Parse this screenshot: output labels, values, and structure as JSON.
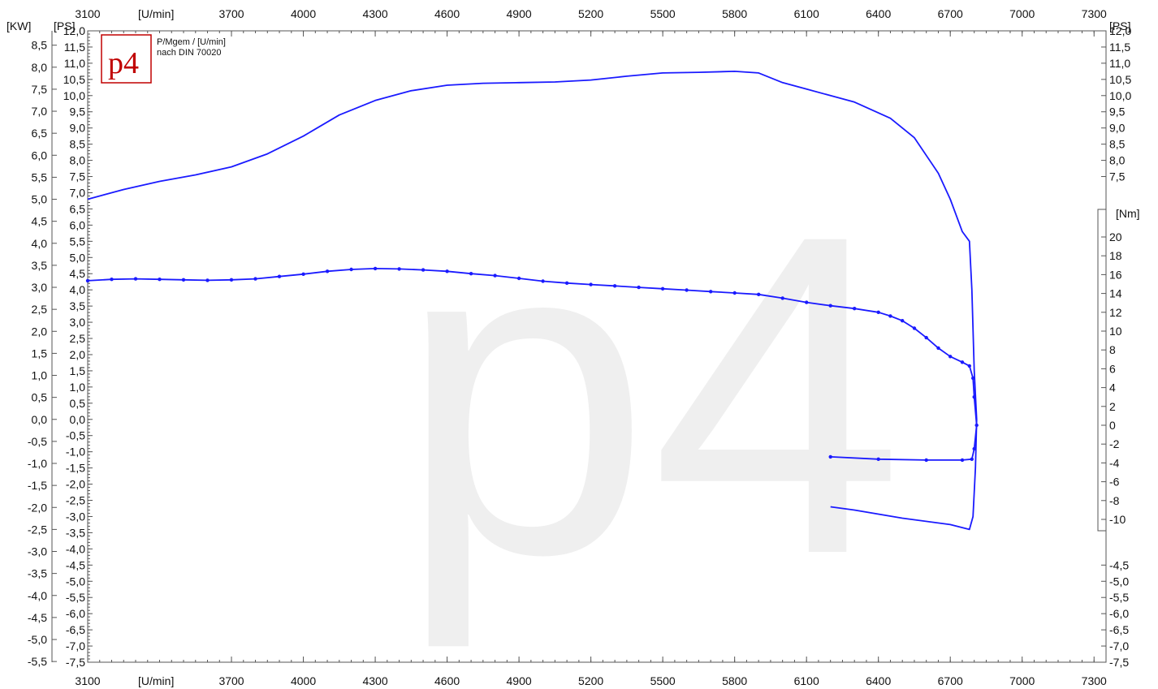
{
  "chart_data": {
    "type": "line",
    "header": {
      "left_kw": "[KW]",
      "left_ps": "[PS]",
      "right_ps": "[PS]",
      "right_nm": "[Nm]",
      "x_unit_top": "[U/min]",
      "x_unit_bottom": "[U/min]"
    },
    "legend_note": {
      "line1": "P/Mgem / [U/min]",
      "line2": "nach DIN 70020"
    },
    "logo_text": "p4",
    "watermark_text": "p4",
    "x_axis": {
      "range": [
        3100,
        7350
      ],
      "tick_labels": [
        3100,
        3700,
        4000,
        4300,
        4600,
        4900,
        5200,
        5500,
        5800,
        6100,
        6400,
        6700,
        7000,
        7300
      ]
    },
    "kw_axis": {
      "tick_labels": [
        "8,5",
        "8,0",
        "7,5",
        "7,0",
        "6,5",
        "6,0",
        "5,5",
        "5,0",
        "4,5",
        "4,0",
        "3,5",
        "3,0",
        "2,5",
        "2,0",
        "1,5",
        "1,0",
        "0,5",
        "0,0",
        "-0,5",
        "-1,0",
        "-1,5",
        "-2,0",
        "-2,5",
        "-3,0",
        "-3,5",
        "-4,0",
        "-4,5",
        "-5,0",
        "-5,5"
      ]
    },
    "ps_axis": {
      "range": [
        -7.5,
        12.0
      ],
      "tick_labels": [
        "12,0",
        "11,5",
        "11,0",
        "10,5",
        "10,0",
        "9,5",
        "9,0",
        "8,5",
        "8,0",
        "7,5",
        "7,0",
        "6,5",
        "6,0",
        "5,5",
        "5,0",
        "4,5",
        "4,0",
        "3,5",
        "3,0",
        "2,5",
        "2,0",
        "1,5",
        "1,0",
        "0,5",
        "0,0",
        "-0,5",
        "-1,0",
        "-1,5",
        "-2,0",
        "-2,5",
        "-3,0",
        "-3,5",
        "-4,0",
        "-4,5",
        "-5,0",
        "-5,5",
        "-6,0",
        "-6,5",
        "-7,0",
        "-7,5"
      ]
    },
    "right_ps_upper_labels": [
      "12,0",
      "11,5",
      "11,0",
      "10,5",
      "10,0",
      "9,5",
      "9,0",
      "8,5",
      "8,0",
      "7,5"
    ],
    "right_ps_lower_labels": [
      "-4,5",
      "-5,0",
      "-5,5",
      "-6,0",
      "-6,5",
      "-7,0",
      "-7,5"
    ],
    "nm_axis": {
      "range": [
        -10,
        20
      ],
      "tick_labels": [
        "20",
        "18",
        "16",
        "14",
        "12",
        "10",
        "8",
        "6",
        "4",
        "2",
        "0",
        "-2",
        "-4",
        "-6",
        "-8",
        "-10"
      ]
    },
    "series": [
      {
        "color": "#1a1aff",
        "axis": "ps",
        "markers": false,
        "points": [
          [
            3100,
            6.8
          ],
          [
            3250,
            7.1
          ],
          [
            3400,
            7.35
          ],
          [
            3550,
            7.55
          ],
          [
            3700,
            7.8
          ],
          [
            3850,
            8.2
          ],
          [
            4000,
            8.75
          ],
          [
            4150,
            9.4
          ],
          [
            4300,
            9.85
          ],
          [
            4450,
            10.15
          ],
          [
            4600,
            10.32
          ],
          [
            4750,
            10.38
          ],
          [
            4900,
            10.4
          ],
          [
            5050,
            10.42
          ],
          [
            5200,
            10.48
          ],
          [
            5350,
            10.6
          ],
          [
            5500,
            10.7
          ],
          [
            5650,
            10.72
          ],
          [
            5800,
            10.75
          ],
          [
            5900,
            10.7
          ],
          [
            6000,
            10.4
          ],
          [
            6100,
            10.2
          ],
          [
            6300,
            9.8
          ],
          [
            6450,
            9.3
          ],
          [
            6550,
            8.7
          ],
          [
            6650,
            7.6
          ],
          [
            6700,
            6.8
          ],
          [
            6750,
            5.8
          ],
          [
            6780,
            5.5
          ],
          [
            6790,
            4.0
          ],
          [
            6800,
            1.5
          ],
          [
            6810,
            0.0
          ],
          [
            6805,
            -1.5
          ],
          [
            6795,
            -3.0
          ],
          [
            6780,
            -3.4
          ],
          [
            6700,
            -3.25
          ],
          [
            6500,
            -3.05
          ],
          [
            6300,
            -2.8
          ],
          [
            6200,
            -2.7
          ]
        ]
      },
      {
        "color": "#1a1aff",
        "axis": "nm",
        "markers": true,
        "points": [
          [
            3100,
            15.35
          ],
          [
            3200,
            15.5
          ],
          [
            3300,
            15.55
          ],
          [
            3400,
            15.5
          ],
          [
            3500,
            15.45
          ],
          [
            3600,
            15.4
          ],
          [
            3700,
            15.45
          ],
          [
            3800,
            15.55
          ],
          [
            3900,
            15.8
          ],
          [
            4000,
            16.05
          ],
          [
            4100,
            16.35
          ],
          [
            4200,
            16.55
          ],
          [
            4300,
            16.65
          ],
          [
            4400,
            16.6
          ],
          [
            4500,
            16.5
          ],
          [
            4600,
            16.35
          ],
          [
            4700,
            16.1
          ],
          [
            4800,
            15.9
          ],
          [
            4900,
            15.6
          ],
          [
            5000,
            15.3
          ],
          [
            5100,
            15.1
          ],
          [
            5200,
            14.95
          ],
          [
            5300,
            14.8
          ],
          [
            5400,
            14.65
          ],
          [
            5500,
            14.5
          ],
          [
            5600,
            14.35
          ],
          [
            5700,
            14.2
          ],
          [
            5800,
            14.05
          ],
          [
            5900,
            13.9
          ],
          [
            6000,
            13.5
          ],
          [
            6100,
            13.05
          ],
          [
            6200,
            12.7
          ],
          [
            6300,
            12.4
          ],
          [
            6400,
            12.0
          ],
          [
            6450,
            11.6
          ],
          [
            6500,
            11.1
          ],
          [
            6550,
            10.3
          ],
          [
            6600,
            9.3
          ],
          [
            6650,
            8.2
          ],
          [
            6700,
            7.3
          ],
          [
            6750,
            6.7
          ],
          [
            6780,
            6.3
          ],
          [
            6795,
            5.0
          ],
          [
            6800,
            3.0
          ],
          [
            6810,
            0.0
          ],
          [
            6800,
            -2.5
          ],
          [
            6790,
            -3.6
          ],
          [
            6750,
            -3.7
          ],
          [
            6600,
            -3.7
          ],
          [
            6400,
            -3.6
          ],
          [
            6200,
            -3.35
          ]
        ]
      }
    ]
  }
}
